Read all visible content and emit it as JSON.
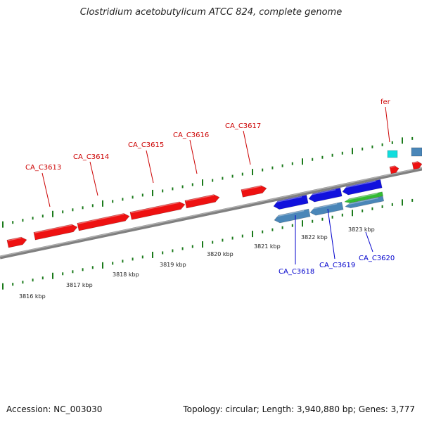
{
  "title": "Clostridium acetobutylicum ATCC 824, complete genome",
  "footer": {
    "accession_label": "Accession: NC_003030",
    "stats_label": "Topology: circular; Length: 3,940,880 bp; Genes: 3,777"
  },
  "colors": {
    "forward_gene": "#ee1111",
    "reverse_gene": "#1111dd",
    "reverse_gene_2": "#4a86b8",
    "rna_gene": "#33bb33",
    "special_gene": "#11dddd",
    "tick": "#1a7a1a",
    "backbone": "#808080",
    "forward_label": "#cc0000",
    "reverse_label": "#0000cc"
  },
  "ruler_labels": [
    "3816 kbp",
    "3817 kbp",
    "3818 kbp",
    "3819 kbp",
    "3820 kbp",
    "3821 kbp",
    "3822 kbp",
    "3823 kbp"
  ],
  "forward_genes": [
    "CA_C3613",
    "CA_C3614",
    "CA_C3615",
    "CA_C3616",
    "CA_C3617",
    "fer"
  ],
  "reverse_genes": [
    "CA_C3618",
    "CA_C3619",
    "CA_C3620"
  ]
}
